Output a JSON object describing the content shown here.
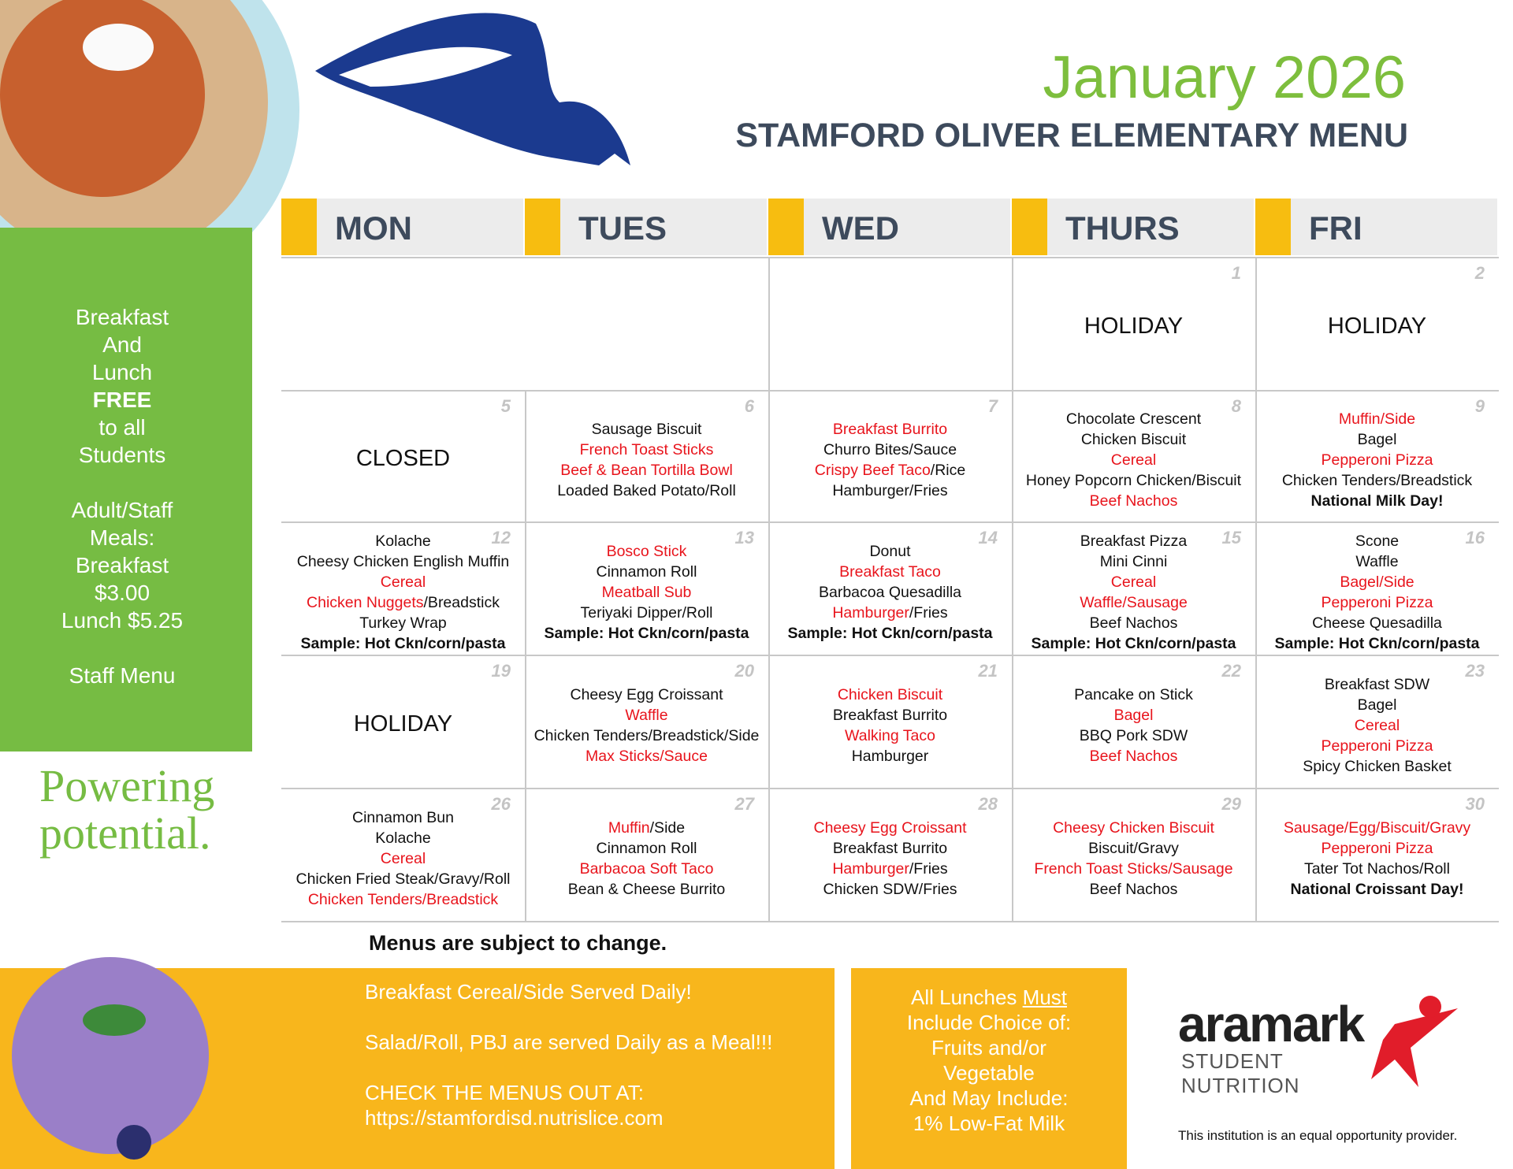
{
  "header": {
    "title": "January 2026",
    "subtitle": "STAMFORD OLIVER ELEMENTARY MENU"
  },
  "days": [
    "MON",
    "TUES",
    "WED",
    "THURS",
    "FRI"
  ],
  "weeks": [
    [
      {
        "lines": []
      },
      {
        "lines": []
      },
      {
        "lines": []
      },
      {
        "date": 1,
        "lines": [
          [
            {
              "text": "HOLIDAY",
              "style": "big"
            }
          ]
        ]
      },
      {
        "date": 2,
        "lines": [
          [
            {
              "text": "HOLIDAY",
              "style": "big"
            }
          ]
        ]
      }
    ],
    [
      {
        "date": 5,
        "lines": [
          [
            {
              "text": "CLOSED",
              "style": "big"
            }
          ]
        ]
      },
      {
        "date": 6,
        "lines": [
          [
            {
              "text": "Sausage Biscuit"
            }
          ],
          [
            {
              "text": "French Toast Sticks",
              "style": "red"
            }
          ],
          [
            {
              "text": "Beef & Bean Tortilla Bowl",
              "style": "red"
            }
          ],
          [
            {
              "text": "Loaded Baked Potato/Roll"
            }
          ]
        ]
      },
      {
        "date": 7,
        "lines": [
          [
            {
              "text": "Breakfast Burrito",
              "style": "red"
            }
          ],
          [
            {
              "text": "Churro Bites/Sauce"
            }
          ],
          [
            {
              "text": "Crispy Beef Taco",
              "style": "red"
            },
            {
              "text": "/Rice"
            }
          ],
          [
            {
              "text": "Hamburger/Fries"
            }
          ]
        ]
      },
      {
        "date": 8,
        "lines": [
          [
            {
              "text": "Chocolate Crescent"
            }
          ],
          [
            {
              "text": "Chicken Biscuit"
            }
          ],
          [
            {
              "text": "Cereal",
              "style": "red"
            }
          ],
          [
            {
              "text": "Honey Popcorn Chicken/Biscuit"
            }
          ],
          [
            {
              "text": "Beef Nachos",
              "style": "red"
            }
          ]
        ]
      },
      {
        "date": 9,
        "lines": [
          [
            {
              "text": "Muffin/Side",
              "style": "red"
            }
          ],
          [
            {
              "text": "Bagel"
            }
          ],
          [
            {
              "text": "Pepperoni Pizza",
              "style": "red"
            }
          ],
          [
            {
              "text": "Chicken Tenders/Breadstick"
            }
          ],
          [
            {
              "text": "National Milk Day!",
              "style": "bold"
            }
          ]
        ]
      }
    ],
    [
      {
        "date": 12,
        "lines": [
          [
            {
              "text": "Kolache"
            }
          ],
          [
            {
              "text": "Cheesy Chicken English Muffin"
            }
          ],
          [
            {
              "text": "Cereal",
              "style": "red"
            }
          ],
          [
            {
              "text": "Chicken Nuggets",
              "style": "red"
            },
            {
              "text": "/Breadstick"
            }
          ],
          [
            {
              "text": "Turkey Wrap"
            }
          ],
          [
            {
              "text": "Sample: Hot Ckn/corn/pasta",
              "style": "bold"
            }
          ]
        ]
      },
      {
        "date": 13,
        "lines": [
          [
            {
              "text": "Bosco Stick",
              "style": "red"
            }
          ],
          [
            {
              "text": "Cinnamon Roll"
            }
          ],
          [
            {
              "text": "Meatball Sub",
              "style": "red"
            }
          ],
          [
            {
              "text": "Teriyaki Dipper/Roll"
            }
          ],
          [
            {
              "text": "Sample: Hot Ckn/corn/pasta",
              "style": "bold"
            }
          ]
        ]
      },
      {
        "date": 14,
        "lines": [
          [
            {
              "text": "Donut"
            }
          ],
          [
            {
              "text": "Breakfast Taco",
              "style": "red"
            }
          ],
          [
            {
              "text": "Barbacoa Quesadilla"
            }
          ],
          [
            {
              "text": "Hamburger",
              "style": "red"
            },
            {
              "text": "/Fries"
            }
          ],
          [
            {
              "text": "Sample: Hot Ckn/corn/pasta",
              "style": "bold"
            }
          ]
        ]
      },
      {
        "date": 15,
        "lines": [
          [
            {
              "text": "Breakfast Pizza"
            }
          ],
          [
            {
              "text": "Mini Cinni"
            }
          ],
          [
            {
              "text": "Cereal",
              "style": "red"
            }
          ],
          [
            {
              "text": "Waffle/Sausage",
              "style": "red"
            }
          ],
          [
            {
              "text": "Beef Nachos"
            }
          ],
          [
            {
              "text": "Sample: Hot Ckn/corn/pasta",
              "style": "bold"
            }
          ]
        ]
      },
      {
        "date": 16,
        "lines": [
          [
            {
              "text": "Scone"
            }
          ],
          [
            {
              "text": "Waffle"
            }
          ],
          [
            {
              "text": "Bagel/Side",
              "style": "red"
            }
          ],
          [
            {
              "text": "Pepperoni Pizza",
              "style": "red"
            }
          ],
          [
            {
              "text": "Cheese Quesadilla"
            }
          ],
          [
            {
              "text": "Sample: Hot Ckn/corn/pasta",
              "style": "bold"
            }
          ]
        ]
      }
    ],
    [
      {
        "date": 19,
        "lines": [
          [
            {
              "text": "HOLIDAY",
              "style": "big"
            }
          ]
        ]
      },
      {
        "date": 20,
        "lines": [
          [
            {
              "text": "Cheesy Egg Croissant"
            }
          ],
          [
            {
              "text": "Waffle",
              "style": "red"
            }
          ],
          [
            {
              "text": "Chicken Tenders/Breadstick/Side"
            }
          ],
          [
            {
              "text": "Max Sticks/Sauce",
              "style": "red"
            }
          ]
        ]
      },
      {
        "date": 21,
        "lines": [
          [
            {
              "text": "Chicken Biscuit",
              "style": "red"
            }
          ],
          [
            {
              "text": "Breakfast Burrito"
            }
          ],
          [
            {
              "text": "Walking Taco",
              "style": "red"
            }
          ],
          [
            {
              "text": "Hamburger"
            }
          ]
        ]
      },
      {
        "date": 22,
        "lines": [
          [
            {
              "text": "Pancake on Stick"
            }
          ],
          [
            {
              "text": "Bagel",
              "style": "red"
            }
          ],
          [
            {
              "text": "BBQ Pork SDW"
            }
          ],
          [
            {
              "text": "Beef Nachos",
              "style": "red"
            }
          ]
        ]
      },
      {
        "date": 23,
        "lines": [
          [
            {
              "text": "Breakfast SDW"
            }
          ],
          [
            {
              "text": "Bagel"
            }
          ],
          [
            {
              "text": "Cereal",
              "style": "red"
            }
          ],
          [
            {
              "text": "Pepperoni Pizza",
              "style": "red"
            }
          ],
          [
            {
              "text": "Spicy Chicken Basket"
            }
          ]
        ]
      }
    ],
    [
      {
        "date": 26,
        "lines": [
          [
            {
              "text": "Cinnamon Bun"
            }
          ],
          [
            {
              "text": "Kolache"
            }
          ],
          [
            {
              "text": "Cereal",
              "style": "red"
            }
          ],
          [
            {
              "text": "Chicken Fried Steak/Gravy/Roll"
            }
          ],
          [
            {
              "text": "Chicken Tenders/Breadstick",
              "style": "red"
            }
          ]
        ]
      },
      {
        "date": 27,
        "lines": [
          [
            {
              "text": "Muffin",
              "style": "red"
            },
            {
              "text": "/Side"
            }
          ],
          [
            {
              "text": "Cinnamon Roll"
            }
          ],
          [
            {
              "text": "Barbacoa Soft Taco",
              "style": "red"
            }
          ],
          [
            {
              "text": "Bean & Cheese Burrito"
            }
          ]
        ]
      },
      {
        "date": 28,
        "lines": [
          [
            {
              "text": "Cheesy Egg Croissant",
              "style": "red"
            }
          ],
          [
            {
              "text": "Breakfast Burrito"
            }
          ],
          [
            {
              "text": "Hamburger",
              "style": "red"
            },
            {
              "text": "/Fries"
            }
          ],
          [
            {
              "text": "Chicken SDW/Fries"
            }
          ]
        ]
      },
      {
        "date": 29,
        "lines": [
          [
            {
              "text": "Cheesy Chicken Biscuit",
              "style": "red"
            }
          ],
          [
            {
              "text": "Biscuit/Gravy"
            }
          ],
          [
            {
              "text": "French Toast Sticks/Sausage",
              "style": "red"
            }
          ],
          [
            {
              "text": "Beef Nachos"
            }
          ]
        ]
      },
      {
        "date": 30,
        "lines": [
          [
            {
              "text": "Sausage/Egg/Biscuit/Gravy",
              "style": "red"
            }
          ],
          [
            {
              "text": "Pepperoni Pizza",
              "style": "red"
            }
          ],
          [
            {
              "text": "Tater Tot Nachos/Roll"
            }
          ],
          [
            {
              "text": "National Croissant Day!",
              "style": "bold"
            }
          ]
        ]
      }
    ]
  ],
  "side_panel": {
    "paragraphs": [
      [
        [
          {
            "text": "Breakfast"
          }
        ],
        [
          {
            "text": "And"
          }
        ],
        [
          {
            "text": "Lunch"
          }
        ],
        [
          {
            "text": "FREE",
            "style": "bold"
          }
        ],
        [
          {
            "text": "to all"
          }
        ],
        [
          {
            "text": "Students"
          }
        ]
      ],
      [
        [
          {
            "text": "Adult/Staff"
          }
        ],
        [
          {
            "text": "Meals:"
          }
        ],
        [
          {
            "text": "Breakfast"
          }
        ],
        [
          {
            "text": "$3.00"
          }
        ],
        [
          {
            "text": "Lunch $5.25"
          }
        ]
      ],
      [
        [
          {
            "text": "Staff Menu"
          }
        ]
      ]
    ]
  },
  "slogan": [
    "Powering",
    "potential."
  ],
  "notice": "Menus are subject to change.",
  "info_box": {
    "paragraphs": [
      [
        "Breakfast Cereal/Side Served Daily!"
      ],
      [
        "Salad/Roll, PBJ are served Daily as a Meal!!!"
      ],
      [
        "CHECK THE MENUS OUT AT:",
        "https://stamfordisd.nutrislice.com"
      ]
    ]
  },
  "lunch_box": {
    "lines": [
      [
        {
          "text": "All Lunches "
        },
        {
          "text": "Must",
          "style": "underline"
        }
      ],
      [
        {
          "text": "Include Choice of:"
        }
      ],
      [
        {
          "text": "Fruits and/or"
        }
      ],
      [
        {
          "text": "Vegetable"
        }
      ],
      [
        {
          "text": "And May Include:"
        }
      ],
      [
        {
          "text": "1% Low-Fat Milk"
        }
      ]
    ]
  },
  "brand": {
    "name": "aramark",
    "line1": "STUDENT",
    "line2": "NUTRITION",
    "disclaimer": "This institution is an equal opportunity provider."
  }
}
